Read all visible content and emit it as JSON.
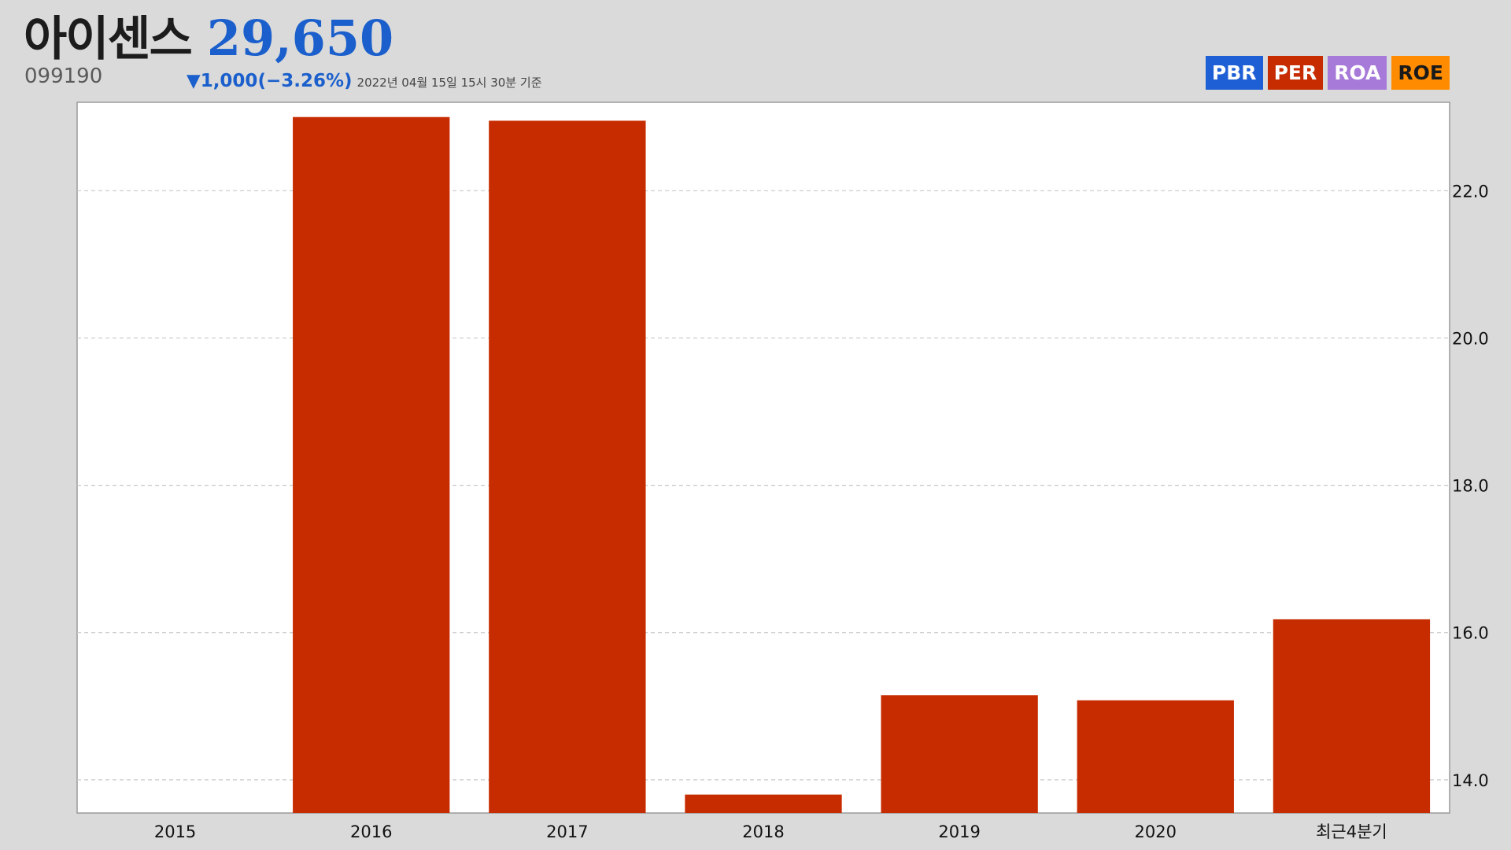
{
  "header": {
    "company_name": "아이센스",
    "price": "29,650",
    "ticker": "099190",
    "change": "▼1,000(−3.26%)",
    "timestamp": "2022년 04월 15일 15시 30분 기준"
  },
  "legend": [
    {
      "label": "PBR",
      "color": "#1f5fd6",
      "text_color": "#ffffff"
    },
    {
      "label": "PER",
      "color": "#c62c00",
      "text_color": "#ffffff"
    },
    {
      "label": "ROA",
      "color": "#a77ad9",
      "text_color": "#ffffff"
    },
    {
      "label": "ROE",
      "color": "#ff8c00",
      "text_color": "#1a1a1a"
    }
  ],
  "chart_data": {
    "type": "bar",
    "categories": [
      "2015",
      "2016",
      "2017",
      "2018",
      "2019",
      "2020",
      "최근4분기"
    ],
    "values": [
      null,
      23.0,
      22.95,
      13.8,
      15.15,
      15.08,
      16.18
    ],
    "ylim": [
      13.55,
      23.2
    ],
    "yticks": [
      14.0,
      16.0,
      18.0,
      20.0,
      22.0
    ],
    "ytick_labels": [
      "14.0",
      "16.0",
      "18.0",
      "20.0",
      "22.0"
    ],
    "y_axis_side": "right",
    "grid": true,
    "bar_color": "#c62c00",
    "legend_placement": "top-right"
  }
}
